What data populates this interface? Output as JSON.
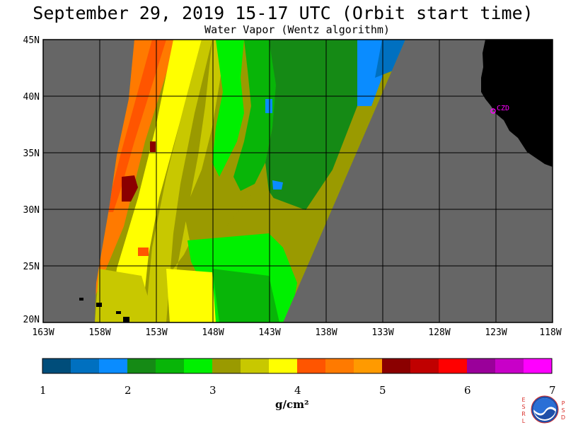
{
  "header": {
    "title": "September 29, 2019  15-17 UTC  (Orbit start time)",
    "subtitle": "Water Vapor (Wentz algorithm)"
  },
  "map": {
    "lat_labels": [
      "45N",
      "40N",
      "35N",
      "30N",
      "25N",
      "20N"
    ],
    "lon_labels": [
      "163W",
      "158W",
      "153W",
      "148W",
      "143W",
      "138W",
      "133W",
      "128W",
      "123W",
      "118W"
    ],
    "station_label": "CZD",
    "colors": {
      "no_data": "#666666",
      "land": "#000000",
      "grid": "#000000",
      "station": "#ff00ff"
    }
  },
  "colorbar": {
    "ticks": [
      "1",
      "2",
      "3",
      "4",
      "5",
      "6",
      "7"
    ],
    "units": "g/cm²",
    "colors": [
      "#004d7a",
      "#0070c0",
      "#0a8cff",
      "#158a15",
      "#08b508",
      "#00f000",
      "#9a9a00",
      "#c8c800",
      "#ffff00",
      "#ff5500",
      "#ff7a00",
      "#ff9a00",
      "#8b0000",
      "#c00000",
      "#ff0000",
      "#9a009a",
      "#c800c8",
      "#ff00ff"
    ]
  },
  "logo": {
    "left_letters": "ESRL",
    "right_letters": "PSD",
    "center_text": "NOAA"
  }
}
